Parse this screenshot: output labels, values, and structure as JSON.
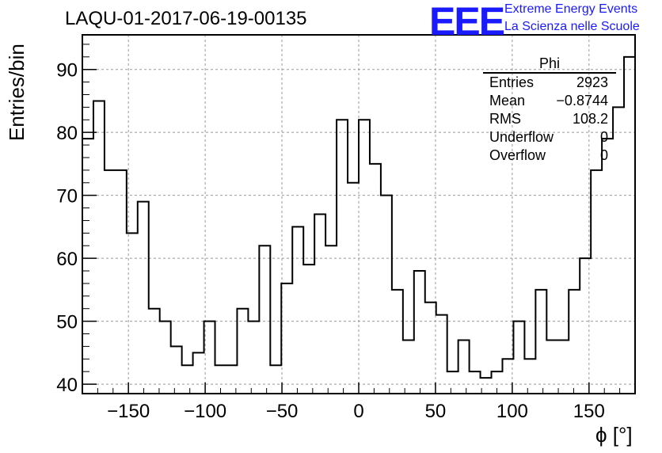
{
  "title": "LAQU-01-2017-06-19-00135",
  "logo": {
    "text": "EEE",
    "line1": "Extreme Energy Events",
    "line2": "La Scienza nelle Scuole"
  },
  "stats": {
    "name": "Phi",
    "rows": [
      {
        "label": "Entries",
        "value": "2923"
      },
      {
        "label": "Mean",
        "value": "−0.8744"
      },
      {
        "label": "RMS",
        "value": "108.2"
      },
      {
        "label": "Underflow",
        "value": "0"
      },
      {
        "label": "Overflow",
        "value": "0"
      }
    ]
  },
  "colors": {
    "line": "#000000",
    "grid": "#999999",
    "logo": "#1a1aff"
  },
  "chart_data": {
    "type": "histogram",
    "title": "LAQU-01-2017-06-19-00135",
    "xlabel": "ϕ [°]",
    "ylabel": "Entries/bin",
    "xlim": [
      -180,
      180
    ],
    "ylim": [
      38.5,
      95.5
    ],
    "bin_width": 7.2,
    "xticks": [
      -150,
      -100,
      -50,
      0,
      50,
      100,
      150
    ],
    "xtick_labels": [
      "−150",
      "−100",
      "−50",
      "0",
      "50",
      "100",
      "150"
    ],
    "yticks": [
      40,
      50,
      60,
      70,
      80,
      90
    ],
    "ytick_labels": [
      "40",
      "50",
      "60",
      "70",
      "80",
      "90"
    ],
    "grid": true,
    "values": [
      79,
      85,
      74,
      74,
      64,
      69,
      52,
      50,
      46,
      43,
      45,
      50,
      43,
      43,
      52,
      50,
      62,
      43,
      56,
      65,
      59,
      67,
      62,
      82,
      72,
      82,
      75,
      70,
      55,
      47,
      58,
      53,
      51,
      42,
      47,
      42,
      41,
      42,
      44,
      50,
      44,
      55,
      47,
      47,
      55,
      60,
      74,
      79,
      84,
      92
    ]
  }
}
